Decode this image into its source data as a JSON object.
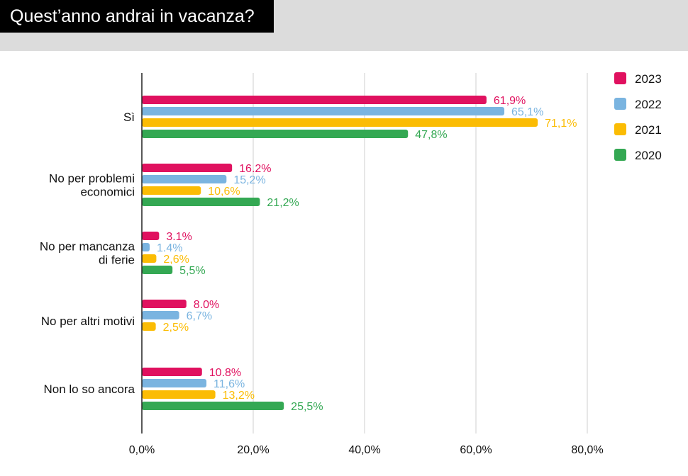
{
  "page": {
    "title": "Quest’anno andrai in vacanza?"
  },
  "chart_data": {
    "type": "bar",
    "orientation": "horizontal",
    "categories": [
      [
        "Sì"
      ],
      [
        "No per problemi",
        "economici"
      ],
      [
        "No per mancanza",
        "di ferie"
      ],
      [
        "No per altri motivi"
      ],
      [
        "Non lo so ancora"
      ]
    ],
    "series": [
      {
        "name": "2023",
        "color": "#e0115f",
        "values": [
          61.9,
          16.2,
          3.1,
          8.0,
          10.8
        ],
        "labels": [
          "61,9%",
          "16.2%",
          "3.1%",
          "8.0%",
          "10.8%"
        ]
      },
      {
        "name": "2022",
        "color": "#7ab4e0",
        "values": [
          65.1,
          15.2,
          1.4,
          6.7,
          11.6
        ],
        "labels": [
          "65,1%",
          "15,2%",
          "1.4%",
          "6,7%",
          "11,6%"
        ]
      },
      {
        "name": "2021",
        "color": "#fbbc04",
        "values": [
          71.1,
          10.6,
          2.6,
          2.5,
          13.2
        ],
        "labels": [
          "71,1%",
          "10,6%",
          "2,6%",
          "2,5%",
          "13,2%"
        ]
      },
      {
        "name": "2020",
        "color": "#34a853",
        "values": [
          47.8,
          21.2,
          5.5,
          null,
          25.5
        ],
        "labels": [
          "47,8%",
          "21,2%",
          "5,5%",
          null,
          "25,5%"
        ]
      }
    ],
    "xlim": [
      0,
      80
    ],
    "xticks": [
      0,
      20,
      40,
      60,
      80
    ],
    "xtick_labels": [
      "0,0%",
      "20,0%",
      "40,0%",
      "60,0%",
      "80,0%"
    ],
    "grid": true,
    "legend_position": "top-right"
  }
}
